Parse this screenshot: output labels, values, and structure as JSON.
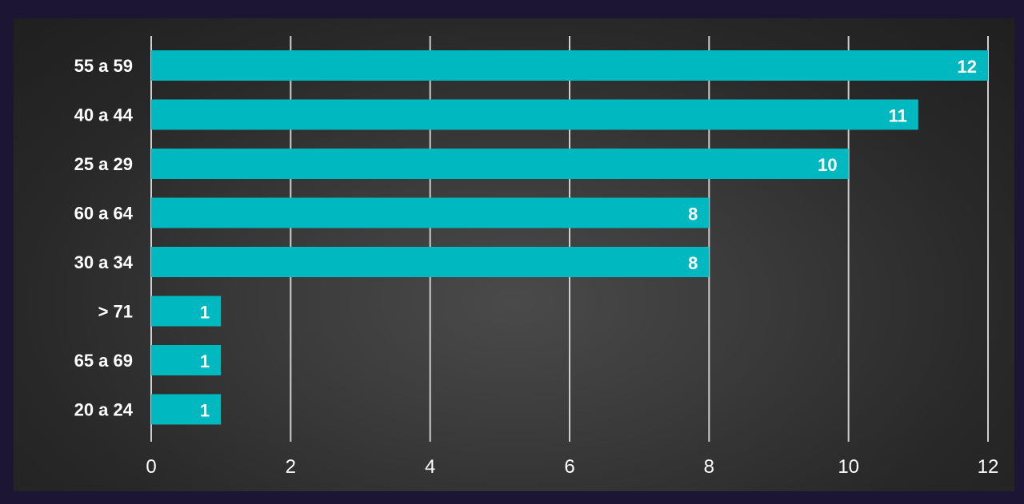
{
  "chart_data": {
    "type": "bar",
    "orientation": "horizontal",
    "categories": [
      "55 a 59",
      "40 a 44",
      "25 a 29",
      "60 a 64",
      "30 a 34",
      "> 71",
      "65 a 69",
      "20 a 24"
    ],
    "values": [
      12,
      11,
      10,
      8,
      8,
      1,
      1,
      1
    ],
    "value_labels": [
      "12",
      "11",
      "10",
      "8",
      "8",
      "1",
      "1",
      "1"
    ],
    "x_ticks": [
      "0",
      "2",
      "4",
      "6",
      "8",
      "10",
      "12"
    ],
    "xlim": [
      0,
      12
    ],
    "grid": true,
    "bar_color": "#00b8c0",
    "background_color": "#333333",
    "gridline_color": "#cfcfcf"
  }
}
